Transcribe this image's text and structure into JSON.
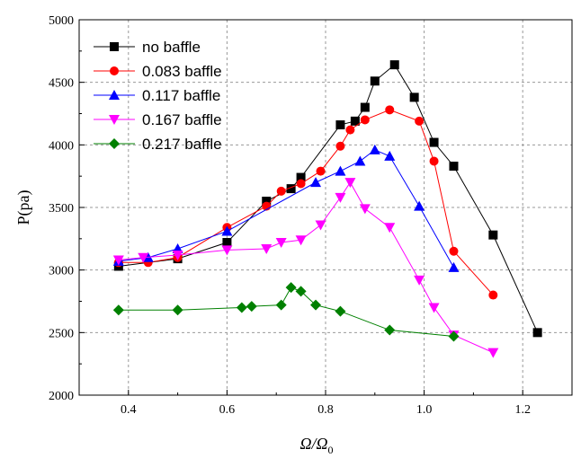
{
  "chart_data": {
    "type": "line",
    "xlabel": "Ω/Ω",
    "xlabel_sub": "0",
    "ylabel": "P(pa)",
    "xlim": [
      0.3,
      1.3
    ],
    "ylim": [
      2000,
      5000
    ],
    "x_ticks": [
      0.4,
      0.6,
      0.8,
      1.0,
      1.2
    ],
    "x_tick_labels": [
      "0.4",
      "0.6",
      "0.8",
      "1.0",
      "1.2"
    ],
    "y_ticks": [
      2000,
      2500,
      3000,
      3500,
      4000,
      4500,
      5000
    ],
    "y_tick_labels": [
      "2000",
      "2500",
      "3000",
      "3500",
      "4000",
      "4500",
      "5000"
    ],
    "grid": true,
    "legend_position": "top-left",
    "series": [
      {
        "name": "no baffle",
        "color": "#000000",
        "marker": "square",
        "x": [
          0.38,
          0.5,
          0.6,
          0.68,
          0.73,
          0.75,
          0.83,
          0.86,
          0.88,
          0.9,
          0.94,
          0.98,
          1.02,
          1.06,
          1.14,
          1.23
        ],
        "y": [
          3030,
          3090,
          3220,
          3550,
          3650,
          3740,
          4160,
          4190,
          4300,
          4510,
          4640,
          4380,
          4020,
          3830,
          3280,
          2500
        ]
      },
      {
        "name": "0.083 baffle",
        "color": "#ff0000",
        "marker": "circle",
        "x": [
          0.38,
          0.44,
          0.5,
          0.6,
          0.68,
          0.71,
          0.75,
          0.79,
          0.83,
          0.85,
          0.88,
          0.93,
          0.99,
          1.02,
          1.06,
          1.14
        ],
        "y": [
          3060,
          3060,
          3100,
          3340,
          3510,
          3630,
          3690,
          3790,
          3990,
          4120,
          4200,
          4280,
          4190,
          3870,
          3150,
          2800
        ]
      },
      {
        "name": "0.117 baffle",
        "color": "#0000ff",
        "marker": "triangle-up",
        "x": [
          0.38,
          0.44,
          0.5,
          0.6,
          0.78,
          0.83,
          0.87,
          0.9,
          0.93,
          0.99,
          1.06
        ],
        "y": [
          3070,
          3100,
          3170,
          3310,
          3700,
          3790,
          3870,
          3960,
          3910,
          3510,
          3020
        ]
      },
      {
        "name": "0.167 baffle",
        "color": "#ff00ff",
        "marker": "triangle-down",
        "x": [
          0.38,
          0.43,
          0.5,
          0.6,
          0.68,
          0.71,
          0.75,
          0.79,
          0.83,
          0.85,
          0.88,
          0.93,
          0.99,
          1.02,
          1.06,
          1.14
        ],
        "y": [
          3080,
          3100,
          3120,
          3160,
          3170,
          3220,
          3240,
          3360,
          3580,
          3700,
          3490,
          3340,
          2920,
          2700,
          2480,
          2340
        ]
      },
      {
        "name": "0.217 baffle",
        "color": "#008000",
        "marker": "diamond",
        "x": [
          0.38,
          0.5,
          0.63,
          0.65,
          0.71,
          0.73,
          0.75,
          0.78,
          0.83,
          0.93,
          1.06
        ],
        "y": [
          2680,
          2680,
          2700,
          2710,
          2720,
          2860,
          2830,
          2720,
          2670,
          2520,
          2470
        ]
      }
    ]
  }
}
